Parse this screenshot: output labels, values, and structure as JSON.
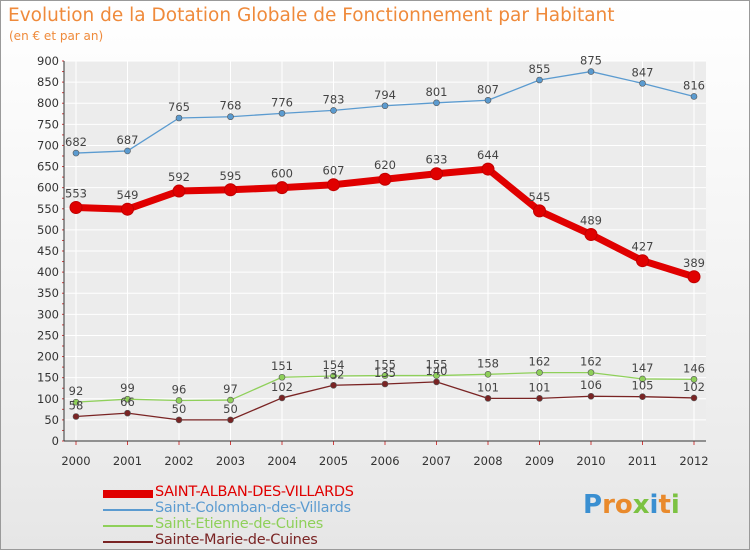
{
  "chart_data": {
    "type": "line",
    "title": "Evolution de la Dotation Globale de Fonctionnement par Habitant",
    "subtitle": "(en € et par an)",
    "x": [
      "2000",
      "2001",
      "2002",
      "2003",
      "2004",
      "2005",
      "2006",
      "2007",
      "2008",
      "2009",
      "2010",
      "2011",
      "2012"
    ],
    "ylim": [
      0,
      900
    ],
    "yticks": [
      0,
      50,
      100,
      150,
      200,
      250,
      300,
      350,
      400,
      450,
      500,
      550,
      600,
      650,
      700,
      750,
      800,
      850,
      900
    ],
    "grid": true,
    "legend_position": "bottom-left",
    "series": [
      {
        "name": "SAINT-ALBAN-DES-VILLARDS",
        "color": "#e00000",
        "values": [
          553,
          549,
          592,
          595,
          600,
          607,
          620,
          633,
          644,
          545,
          489,
          427,
          389
        ]
      },
      {
        "name": "Saint-Colomban-des-Villards",
        "color": "#5b9bd0",
        "values": [
          682,
          687,
          765,
          768,
          776,
          783,
          794,
          801,
          807,
          855,
          875,
          847,
          816
        ]
      },
      {
        "name": "Saint-Etienne-de-Cuines",
        "color": "#8fd05a",
        "values": [
          92,
          99,
          96,
          97,
          151,
          154,
          155,
          155,
          158,
          162,
          162,
          147,
          146
        ]
      },
      {
        "name": "Sainte-Marie-de-Cuines",
        "color": "#7a2424",
        "values": [
          58,
          66,
          50,
          50,
          102,
          132,
          135,
          140,
          101,
          101,
          106,
          105,
          102
        ]
      }
    ]
  },
  "logo": {
    "letters": [
      "P",
      "r",
      "o",
      "x",
      "i",
      "t",
      "i"
    ],
    "colors": [
      "#3a8fd1",
      "#e98a2c",
      "#e98a2c",
      "#7cc242",
      "#3a8fd1",
      "#e98a2c",
      "#7cc242"
    ]
  }
}
